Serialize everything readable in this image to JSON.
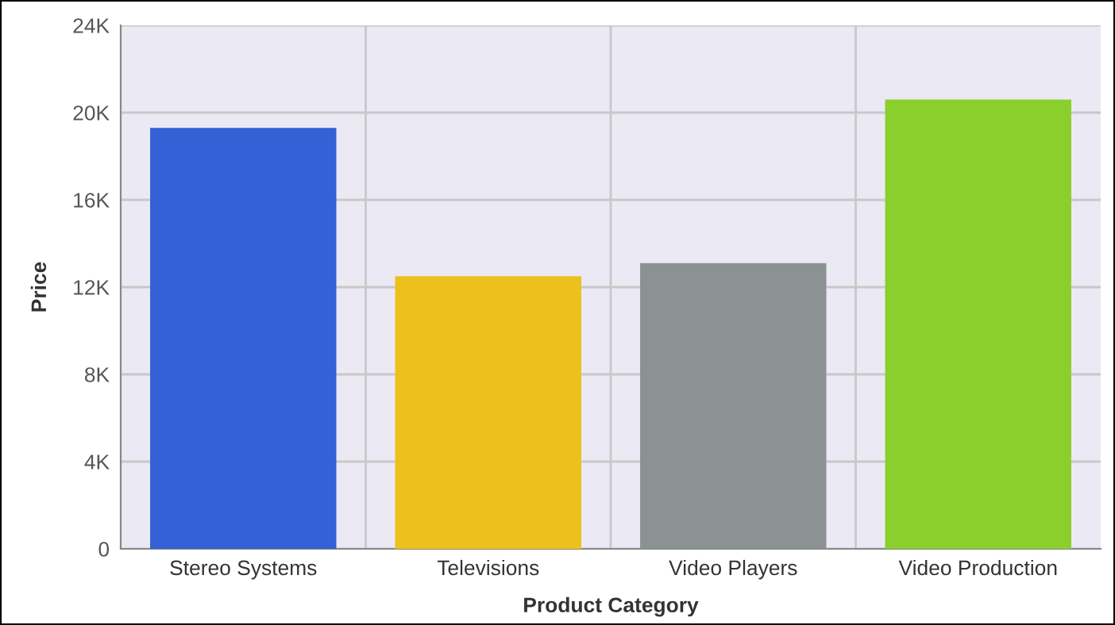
{
  "chart_data": {
    "type": "bar",
    "xlabel": "Product Category",
    "ylabel": "Price",
    "categories": [
      "Stereo Systems",
      "Televisions",
      "Video Players",
      "Video Production"
    ],
    "values": [
      19300,
      12500,
      13100,
      20600
    ],
    "colors": [
      "#3461d6",
      "#ecc11c",
      "#8c9194",
      "#8bcf2d"
    ],
    "ylim": [
      0,
      24000
    ],
    "yticks": [
      0,
      {
        "value": 4000,
        "label": "4K"
      },
      {
        "value": 8000,
        "label": "8K"
      },
      {
        "value": 12000,
        "label": "12K"
      },
      {
        "value": 16000,
        "label": "16K"
      },
      {
        "value": 20000,
        "label": "20K"
      },
      {
        "value": 24000,
        "label": "24K"
      }
    ],
    "grid": true
  }
}
